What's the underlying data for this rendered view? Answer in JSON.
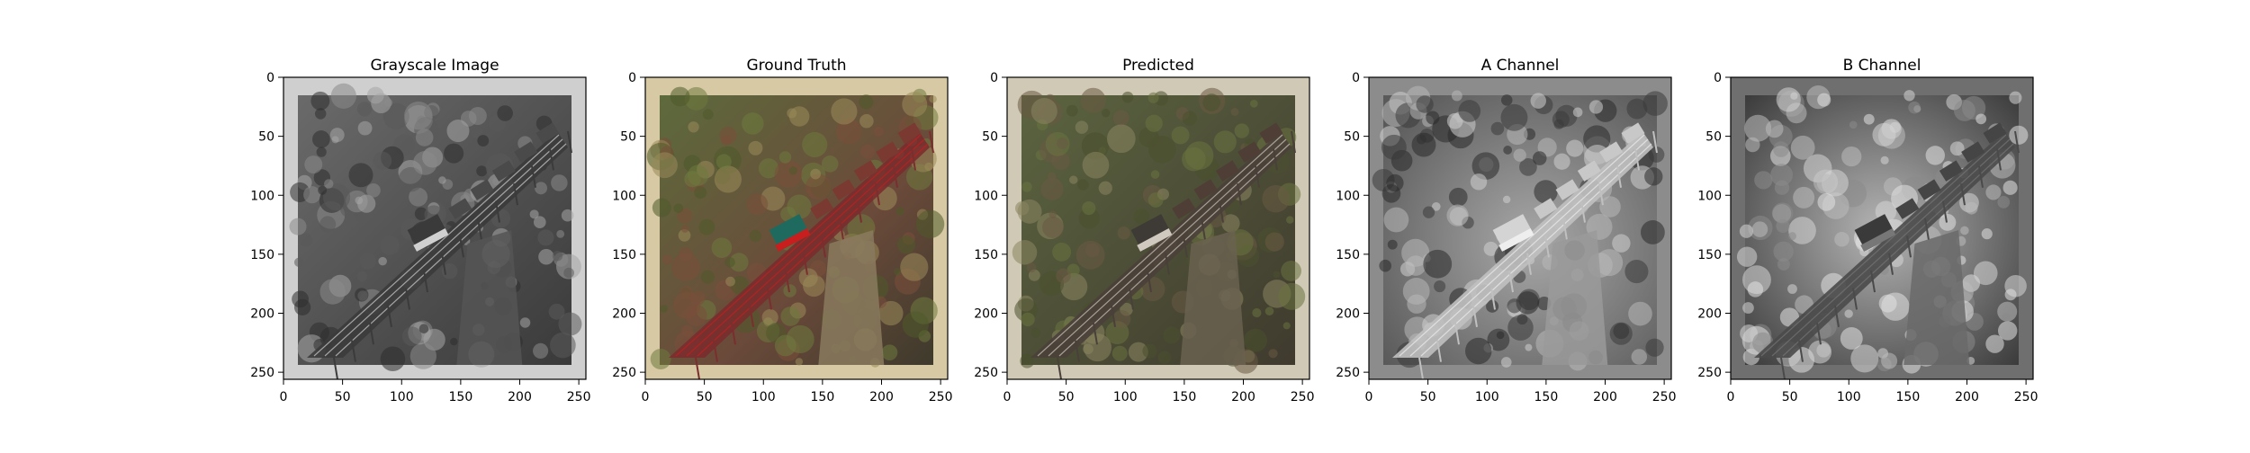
{
  "figure": {
    "panels": [
      {
        "title": "Grayscale Image",
        "variant": "gray",
        "frame_color": "#cfcfcf"
      },
      {
        "title": "Ground Truth",
        "variant": "color",
        "frame_color": "#d7c9a4"
      },
      {
        "title": "Predicted",
        "variant": "muted",
        "frame_color": "#d0c9b6"
      },
      {
        "title": "A Channel",
        "variant": "achan",
        "frame_color": "#8c8c8c"
      },
      {
        "title": "B Channel",
        "variant": "bchan",
        "frame_color": "#6f6f6f"
      }
    ],
    "x_ticks": [
      "0",
      "50",
      "100",
      "150",
      "200",
      "250"
    ],
    "y_ticks": [
      "0",
      "50",
      "100",
      "150",
      "200",
      "250"
    ]
  }
}
